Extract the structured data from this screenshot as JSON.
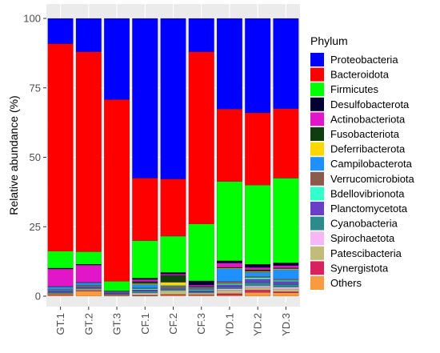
{
  "chart_data": {
    "type": "bar",
    "stacked": true,
    "ylabel": "Relative abundance (%)",
    "xlabel": "",
    "ylim": [
      0,
      100
    ],
    "yticks": [
      0,
      25,
      50,
      75,
      100
    ],
    "categories": [
      "GT.1",
      "GT.2",
      "GT.3",
      "CF.1",
      "CF.2",
      "CF.3",
      "YD.1",
      "YD.2",
      "YD.3"
    ],
    "legend_title": "Phylum",
    "legend_position": "right",
    "grid": true,
    "series": [
      {
        "name": "Proteobacteria",
        "color": "#0000FF",
        "values": [
          9,
          12,
          29.5,
          57.5,
          57.5,
          12,
          32,
          34,
          32.5
        ]
      },
      {
        "name": "Bacteroidota",
        "color": "#FF0000",
        "values": [
          74,
          72,
          66,
          22.5,
          20.5,
          62,
          25.5,
          26,
          25
        ]
      },
      {
        "name": "Firmicutes",
        "color": "#00FF00",
        "values": [
          6,
          4.5,
          3.5,
          13.5,
          13,
          20.5,
          28,
          28.5,
          30.5
        ]
      },
      {
        "name": "Desulfobacterota",
        "color": "#000033",
        "values": [
          0.3,
          0.3,
          0.1,
          0.5,
          0.6,
          1.5,
          0.8,
          1.2,
          1
        ]
      },
      {
        "name": "Actinobacteriota",
        "color": "#E016C8",
        "values": [
          6.2,
          6.2,
          0.3,
          0.7,
          0.4,
          0.5,
          1.5,
          0.8,
          0.8
        ]
      },
      {
        "name": "Fusobacteriota",
        "color": "#0F3D0F",
        "values": [
          0.2,
          0.2,
          0.1,
          0.8,
          2.5,
          0.3,
          0.3,
          0.6,
          0.3
        ]
      },
      {
        "name": "Deferribacterota",
        "color": "#FFD700",
        "values": [
          0,
          0,
          0,
          0.3,
          1.2,
          0.1,
          0.2,
          0.3,
          0.3
        ]
      },
      {
        "name": "Campilobacterota",
        "color": "#1E90FF",
        "values": [
          0.8,
          0.8,
          0.3,
          1.2,
          0.3,
          0.4,
          4.5,
          1.5,
          3.5
        ]
      },
      {
        "name": "Verrucomicrobiota",
        "color": "#8B5A4A",
        "values": [
          0.3,
          0.4,
          0.1,
          0.3,
          0.5,
          0.4,
          0.8,
          0.4,
          0.4
        ]
      },
      {
        "name": "Bdellovibrionota",
        "color": "#33FFCC",
        "values": [
          0.2,
          0.2,
          0.1,
          0.4,
          0.2,
          0.3,
          0.4,
          0.6,
          0.4
        ]
      },
      {
        "name": "Planctomycetota",
        "color": "#6A3FC8",
        "values": [
          0.6,
          0.5,
          0.2,
          0.5,
          0.3,
          0.5,
          0.8,
          1.2,
          1
        ]
      },
      {
        "name": "Cyanobacteria",
        "color": "#2A8C8C",
        "values": [
          0.3,
          0.3,
          0.1,
          0.6,
          0.4,
          0.3,
          0.6,
          1.2,
          1.1
        ]
      },
      {
        "name": "Spirochaetota",
        "color": "#F7B7F7",
        "values": [
          0.1,
          0.1,
          0.1,
          0.3,
          0.2,
          0.2,
          0.5,
          0.6,
          0.6
        ]
      },
      {
        "name": "Patescibacteria",
        "color": "#C2BC7A",
        "values": [
          0.4,
          0.4,
          0.2,
          0.6,
          1.3,
          0.5,
          1.2,
          0.9,
          1
        ]
      },
      {
        "name": "Synergistota",
        "color": "#D8215E",
        "values": [
          0.2,
          0.3,
          0.1,
          0.2,
          0.2,
          0.2,
          0.6,
          0.8,
          0.4
        ]
      },
      {
        "name": "Others",
        "color": "#F79A40",
        "values": [
          0.4,
          1.8,
          0.2,
          0.1,
          0.4,
          0.3,
          0.3,
          1.4,
          1.2
        ]
      }
    ]
  }
}
